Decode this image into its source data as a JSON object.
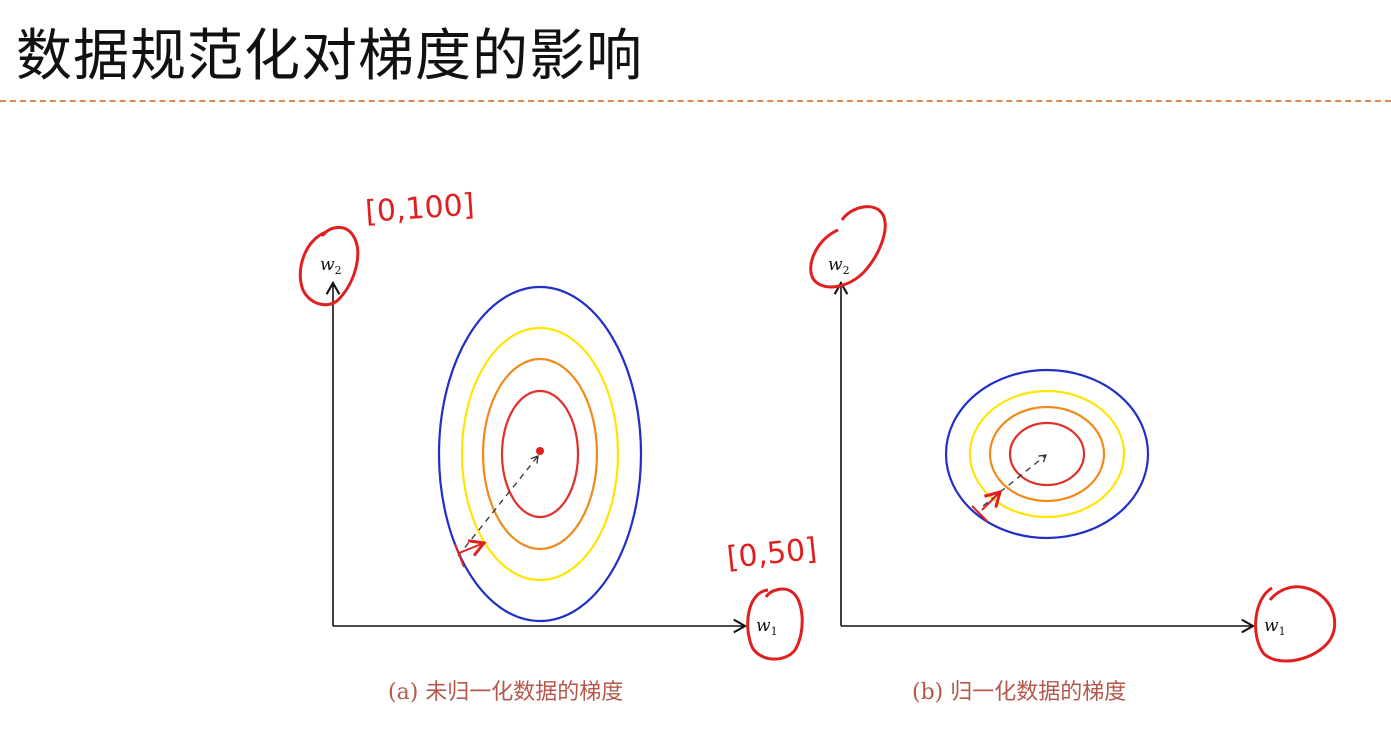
{
  "slide": {
    "title": "数据规范化对梯度的影响"
  },
  "panels": [
    {
      "caption": "(a) 未归一化数据的梯度",
      "x_axis_label": "w",
      "x_axis_sub": "1",
      "y_axis_label": "w",
      "y_axis_sub": "2",
      "contour_colors": [
        "#1f2fc8",
        "#ffe600",
        "#f08a1a",
        "#e0302a"
      ],
      "annotations": {
        "y_range": "[0,100]",
        "x_range": "[0,50]"
      }
    },
    {
      "caption": "(b) 归一化数据的梯度",
      "x_axis_label": "w",
      "x_axis_sub": "1",
      "y_axis_label": "w",
      "y_axis_sub": "2",
      "contour_colors": [
        "#1f2fc8",
        "#ffe600",
        "#f08a1a",
        "#e0302a"
      ]
    }
  ],
  "colors": {
    "annotation": "#e02020",
    "caption": "#b5574a",
    "title_rule": "#e08a4a"
  }
}
